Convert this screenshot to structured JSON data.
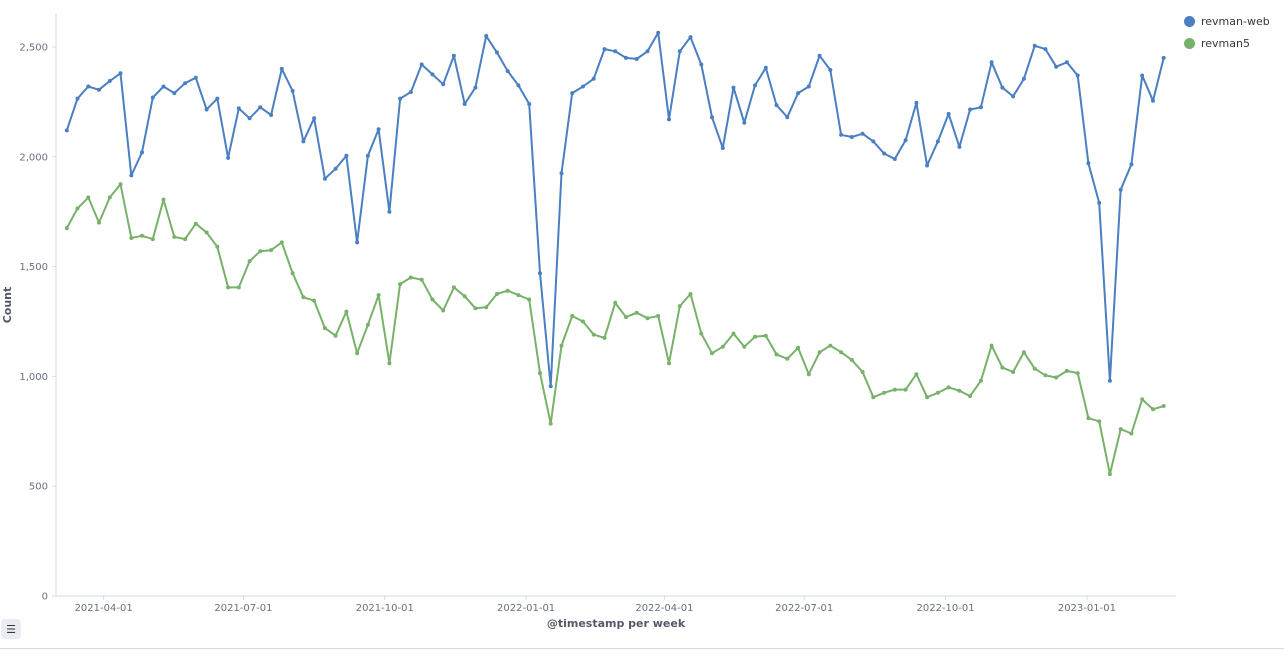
{
  "chart_data": {
    "type": "line",
    "xlabel": "@timestamp per week",
    "ylabel": "Count",
    "ylim": [
      0,
      2650
    ],
    "xlim": [
      "2021-03-01",
      "2023-02-28"
    ],
    "y_ticks": [
      {
        "value": 0,
        "label": "0"
      },
      {
        "value": 500,
        "label": "500"
      },
      {
        "value": 1000,
        "label": "1,000"
      },
      {
        "value": 1500,
        "label": "1,500"
      },
      {
        "value": 2000,
        "label": "2,000"
      },
      {
        "value": 2500,
        "label": "2,500"
      }
    ],
    "x_ticks": [
      "2021-04-01",
      "2021-07-01",
      "2021-10-01",
      "2022-01-01",
      "2022-04-01",
      "2022-07-01",
      "2022-10-01",
      "2023-01-01"
    ],
    "start_week": "2021-03-08",
    "legend_position": "top-right",
    "series": [
      {
        "name": "revman-web",
        "color": "#4a7fc1",
        "values": [
          2120,
          2265,
          2320,
          2305,
          2345,
          2380,
          1915,
          2020,
          2270,
          2320,
          2290,
          2335,
          2360,
          2215,
          2265,
          1995,
          2220,
          2175,
          2225,
          2190,
          2400,
          2300,
          2070,
          2175,
          1900,
          1945,
          2005,
          1610,
          2005,
          2125,
          1750,
          2265,
          2295,
          2420,
          2375,
          2330,
          2460,
          2240,
          2315,
          2550,
          2475,
          2390,
          2325,
          2240,
          1470,
          955,
          1925,
          2290,
          2320,
          2355,
          2490,
          2480,
          2450,
          2445,
          2480,
          2565,
          2170,
          2480,
          2545,
          2420,
          2180,
          2040,
          2315,
          2155,
          2325,
          2405,
          2235,
          2180,
          2290,
          2320,
          2460,
          2395,
          2100,
          2090,
          2105,
          2070,
          2015,
          1990,
          2075,
          2245,
          1960,
          2070,
          2195,
          2045,
          2215,
          2225,
          2430,
          2315,
          2275,
          2355,
          2505,
          2490,
          2410,
          2430,
          2370,
          1970,
          1790,
          980,
          1850,
          1965,
          2370,
          2255,
          2450
        ]
      },
      {
        "name": "revman5",
        "color": "#77b16a",
        "values": [
          1675,
          1765,
          1815,
          1700,
          1815,
          1875,
          1630,
          1640,
          1625,
          1805,
          1635,
          1625,
          1695,
          1655,
          1590,
          1405,
          1405,
          1525,
          1570,
          1575,
          1610,
          1470,
          1360,
          1345,
          1220,
          1185,
          1295,
          1105,
          1235,
          1370,
          1060,
          1420,
          1450,
          1440,
          1350,
          1300,
          1405,
          1365,
          1310,
          1315,
          1375,
          1390,
          1370,
          1350,
          1015,
          785,
          1140,
          1275,
          1250,
          1190,
          1175,
          1335,
          1270,
          1290,
          1265,
          1275,
          1060,
          1320,
          1375,
          1195,
          1105,
          1135,
          1195,
          1135,
          1180,
          1185,
          1100,
          1080,
          1130,
          1010,
          1110,
          1140,
          1110,
          1075,
          1020,
          905,
          925,
          940,
          940,
          1010,
          905,
          925,
          950,
          935,
          910,
          980,
          1140,
          1040,
          1020,
          1110,
          1035,
          1005,
          995,
          1025,
          1015,
          810,
          795,
          555,
          760,
          740,
          895,
          850,
          865
        ]
      }
    ]
  },
  "legend_toggle": {
    "icon": "list-icon",
    "glyph": "☰"
  }
}
